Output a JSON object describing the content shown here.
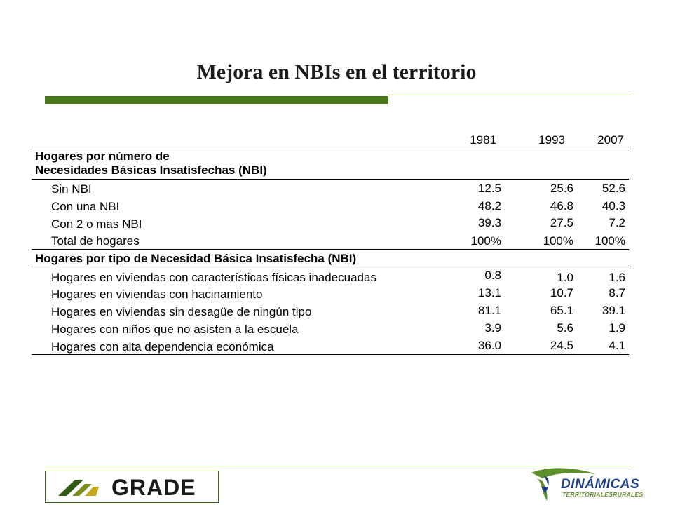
{
  "title": "Mejora en NBIs en el territorio",
  "table": {
    "years": [
      "1981",
      "1993",
      "2007"
    ],
    "section1": {
      "heading_line1": "Hogares por número de",
      "heading_line2": "Necesidades Básicas Insatisfechas (NBI)",
      "rows": [
        {
          "label": "Sin NBI",
          "v1981": "12.5",
          "v1993": "25.6",
          "v2007": "52.6"
        },
        {
          "label": "Con una NBI",
          "v1981": "48.2",
          "v1993": "46.8",
          "v2007": "40.3"
        },
        {
          "label": "Con 2 o mas NBI",
          "v1981": "39.3",
          "v1993": "27.5",
          "v2007": "7.2"
        },
        {
          "label": "Total de hogares",
          "v1981": "100%",
          "v1993": "100%",
          "v2007": "100%"
        }
      ]
    },
    "section2": {
      "heading": "Hogares por tipo de Necesidad Básica Insatisfecha (NBI)",
      "rows": [
        {
          "label": "Hogares en viviendas con características físicas inadecuadas",
          "v1981": "0.8",
          "v1993": "1.0",
          "v2007": "1.6"
        },
        {
          "label": "Hogares en viviendas con hacinamiento",
          "v1981": "13.1",
          "v1993": "10.7",
          "v2007": "8.7"
        },
        {
          "label": "Hogares en viviendas sin desagüe de ningún tipo",
          "v1981": "81.1",
          "v1993": "65.1",
          "v2007": "39.1"
        },
        {
          "label": "Hogares con niños que no asisten a la escuela",
          "v1981": "3.9",
          "v1993": "5.6",
          "v2007": "1.9"
        },
        {
          "label": "Hogares con alta dependencia económica",
          "v1981": "36.0",
          "v1993": "24.5",
          "v2007": "4.1"
        }
      ]
    }
  },
  "logos": {
    "grade": "GRADE",
    "dinamicas": "DINÁMICAS",
    "dinamicas_sub": "TERRITORIALESRURALES"
  },
  "colors": {
    "accent_green": "#4a7a1b",
    "logo_blue": "#1f3f85"
  }
}
